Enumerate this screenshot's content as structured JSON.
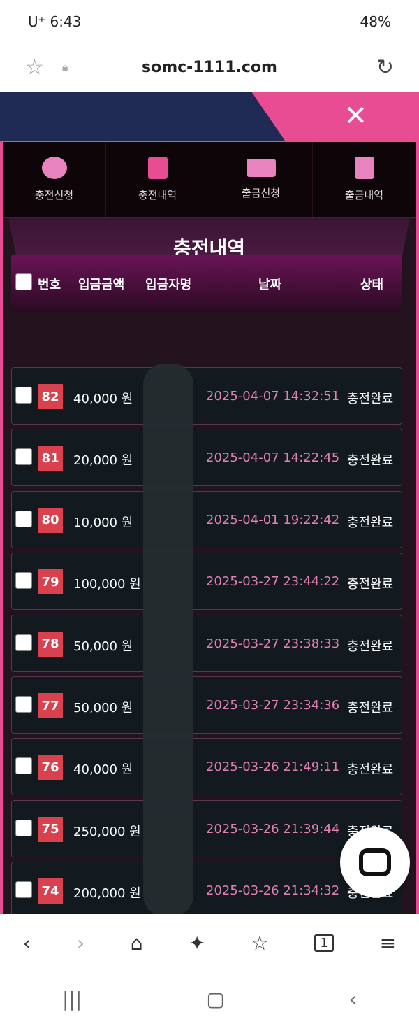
{
  "status_bar": {
    "carrier": "U⁺ 6:43",
    "battery": "48%"
  },
  "browser": {
    "url": "somc-1111.com"
  },
  "menu": [
    {
      "label": "충전신청",
      "icon": "coins-icon"
    },
    {
      "label": "충전내역",
      "icon": "file-import-icon"
    },
    {
      "label": "출금신청",
      "icon": "money-bill-icon"
    },
    {
      "label": "출금내역",
      "icon": "file-export-icon"
    }
  ],
  "page_title": "충전내역",
  "table": {
    "headers": {
      "no": "번호",
      "amount": "입금금액",
      "depositor": "입금자명",
      "date": "날짜",
      "status": "상태"
    },
    "rows": [
      {
        "no": "82",
        "amount": "40,000 원",
        "date": "2025-04-07 14:32:51",
        "status": "충전완료"
      },
      {
        "no": "81",
        "amount": "20,000 원",
        "date": "2025-04-07 14:22:45",
        "status": "충전완료"
      },
      {
        "no": "80",
        "amount": "10,000 원",
        "date": "2025-04-01 19:22:42",
        "status": "충전완료"
      },
      {
        "no": "79",
        "amount": "100,000 원",
        "date": "2025-03-27 23:44:22",
        "status": "충전완료"
      },
      {
        "no": "78",
        "amount": "50,000 원",
        "date": "2025-03-27 23:38:33",
        "status": "충전완료"
      },
      {
        "no": "77",
        "amount": "50,000 원",
        "date": "2025-03-27 23:34:36",
        "status": "충전완료"
      },
      {
        "no": "76",
        "amount": "40,000 원",
        "date": "2025-03-26 21:49:11",
        "status": "충전완료"
      },
      {
        "no": "75",
        "amount": "250,000 원",
        "date": "2025-03-26 21:39:44",
        "status": "충전완료"
      },
      {
        "no": "74",
        "amount": "200,000 원",
        "date": "2025-03-26 21:34:32",
        "status": "충전완료"
      }
    ]
  },
  "colors": {
    "accent": "#e84c93",
    "badge": "#d9414f",
    "date": "#e27fb3"
  }
}
